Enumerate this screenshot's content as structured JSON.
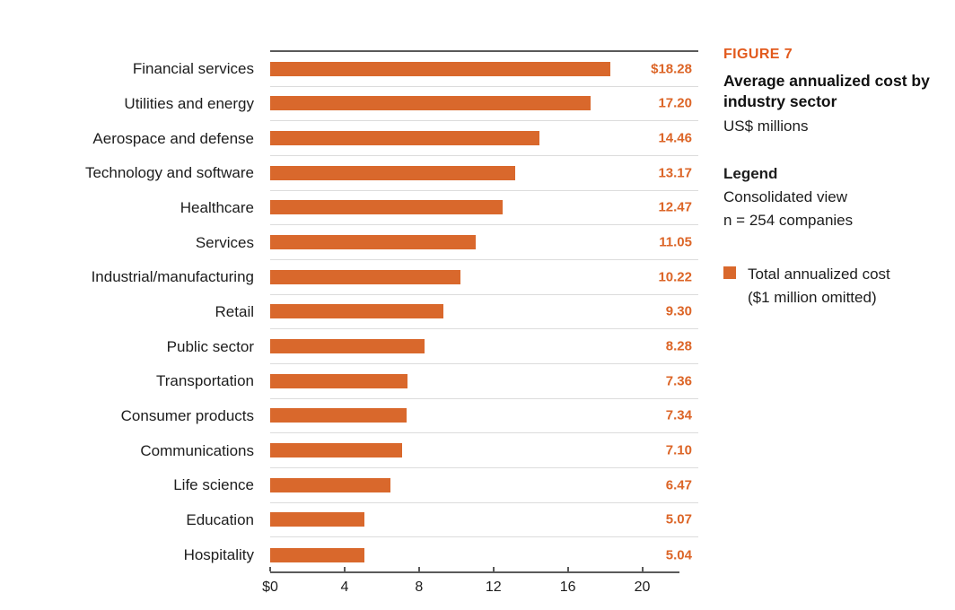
{
  "figure": {
    "label": "FIGURE 7",
    "title": "Average annualized cost by industry sector",
    "subtitle": "US$ millions",
    "legend_heading": "Legend",
    "legend_lines": [
      "Consolidated view",
      "n = 254 companies"
    ],
    "legend_item": {
      "label": "Total annualized cost ($1 million omitted)",
      "swatch_color": "#d9682c"
    }
  },
  "chart_data": {
    "type": "bar",
    "orientation": "horizontal",
    "title": "Average annualized cost by industry sector",
    "subtitle": "US$ millions",
    "xlabel": "",
    "ylabel": "",
    "categories": [
      "Financial services",
      "Utilities and energy",
      "Aerospace and defense",
      "Technology and software",
      "Healthcare",
      "Services",
      "Industrial/manufacturing",
      "Retail",
      "Public sector",
      "Transportation",
      "Consumer products",
      "Communications",
      "Life science",
      "Education",
      "Hospitality"
    ],
    "values": [
      18.28,
      17.2,
      14.46,
      13.17,
      12.47,
      11.05,
      10.22,
      9.3,
      8.28,
      7.36,
      7.34,
      7.1,
      6.47,
      5.07,
      5.04
    ],
    "value_labels": [
      "$18.28",
      "17.20",
      "14.46",
      "13.17",
      "12.47",
      "11.05",
      "10.22",
      "9.30",
      "8.28",
      "7.36",
      "7.34",
      "7.10",
      "6.47",
      "5.07",
      "5.04"
    ],
    "xlim": [
      0,
      22
    ],
    "xticks": [
      0,
      4,
      8,
      12,
      16,
      20
    ],
    "xtick_labels": [
      "$0",
      "4",
      "8",
      "12",
      "16",
      "20"
    ],
    "grid": false,
    "row_separators": true,
    "legend_position": "right",
    "bar_color": "#d9682c",
    "value_label_color": "#dc6527"
  },
  "colors": {
    "accent_orange": "#d9682c",
    "figure_label_orange": "#e25a1d",
    "axis_gray": "#5a5a5a",
    "separator_gray": "#dcdcdc",
    "text_black": "#1d1d1d",
    "background": "#ffffff"
  }
}
